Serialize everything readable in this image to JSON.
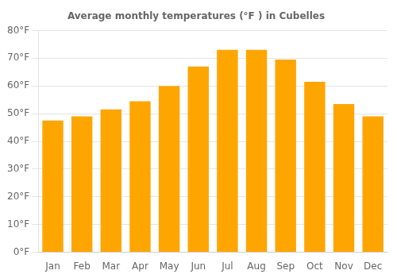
{
  "chart_data": {
    "type": "bar",
    "title": "Average monthly temperatures (°F ) in Cubelles",
    "categories": [
      "Jan",
      "Feb",
      "Mar",
      "Apr",
      "May",
      "Jun",
      "Jul",
      "Aug",
      "Sep",
      "Oct",
      "Nov",
      "Dec"
    ],
    "values": [
      47.5,
      49.0,
      51.5,
      54.5,
      60.0,
      67.0,
      73.0,
      73.0,
      69.5,
      61.5,
      53.5,
      49.0
    ],
    "color": "#FFA500",
    "ylim": [
      0,
      80
    ],
    "yticks": [
      {
        "value": 0,
        "label": "0°F"
      },
      {
        "value": 10,
        "label": "10°F"
      },
      {
        "value": 20,
        "label": "20°F"
      },
      {
        "value": 30,
        "label": "30°F"
      },
      {
        "value": 40,
        "label": "40°F"
      },
      {
        "value": 50,
        "label": "50°F"
      },
      {
        "value": 60,
        "label": "60°F"
      },
      {
        "value": 70,
        "label": "70°F"
      },
      {
        "value": 80,
        "label": "80°F"
      }
    ],
    "grid": true
  }
}
